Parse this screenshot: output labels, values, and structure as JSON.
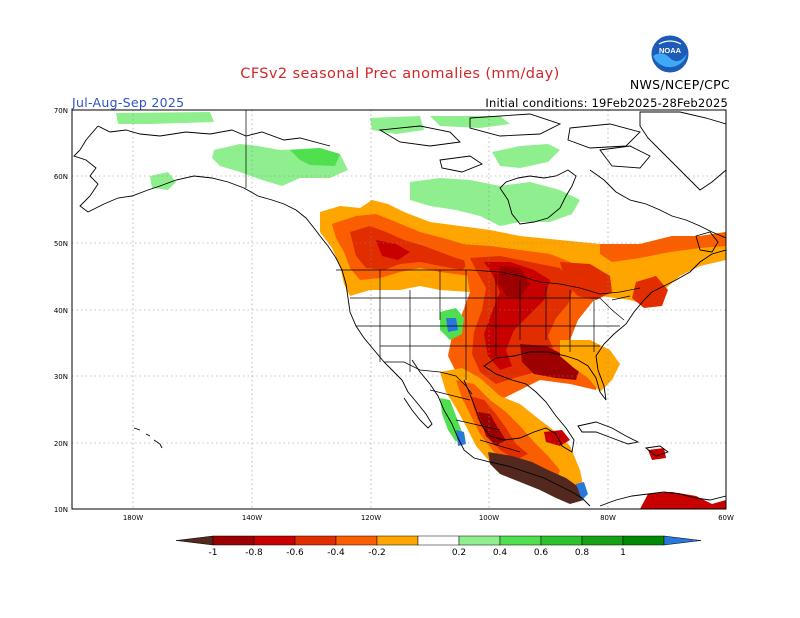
{
  "header": {
    "title": "CFSv2 seasonal Prec anomalies (mm/day)",
    "season": "Jul-Aug-Sep 2025",
    "initial_conditions": "Initial conditions: 19Feb2025-28Feb2025",
    "agency": "NWS/NCEP/CPC",
    "logo_text": "NOAA"
  },
  "map": {
    "extent": {
      "lon": [
        -190,
        -60
      ],
      "lat": [
        10,
        70
      ]
    },
    "lat_labels": [
      "70N",
      "60N",
      "50N",
      "40N",
      "30N",
      "20N",
      "10N"
    ],
    "lon_labels": [
      "180W",
      "140W",
      "120W",
      "100W",
      "80W",
      "60W"
    ],
    "grid_lines": true
  },
  "colorbar": {
    "labels": [
      "-1",
      "-0.8",
      "-0.6",
      "-0.4",
      "-0.2",
      "0.2",
      "0.4",
      "0.6",
      "0.8",
      "1"
    ],
    "colors": [
      "#53291f",
      "#9c0000",
      "#c80000",
      "#e12d00",
      "#fb5e00",
      "#ffa500",
      "#ffffff",
      "#8fef8f",
      "#4fdf4f",
      "#2bc22b",
      "#15a315",
      "#038a03",
      "#2878dc"
    ]
  }
}
